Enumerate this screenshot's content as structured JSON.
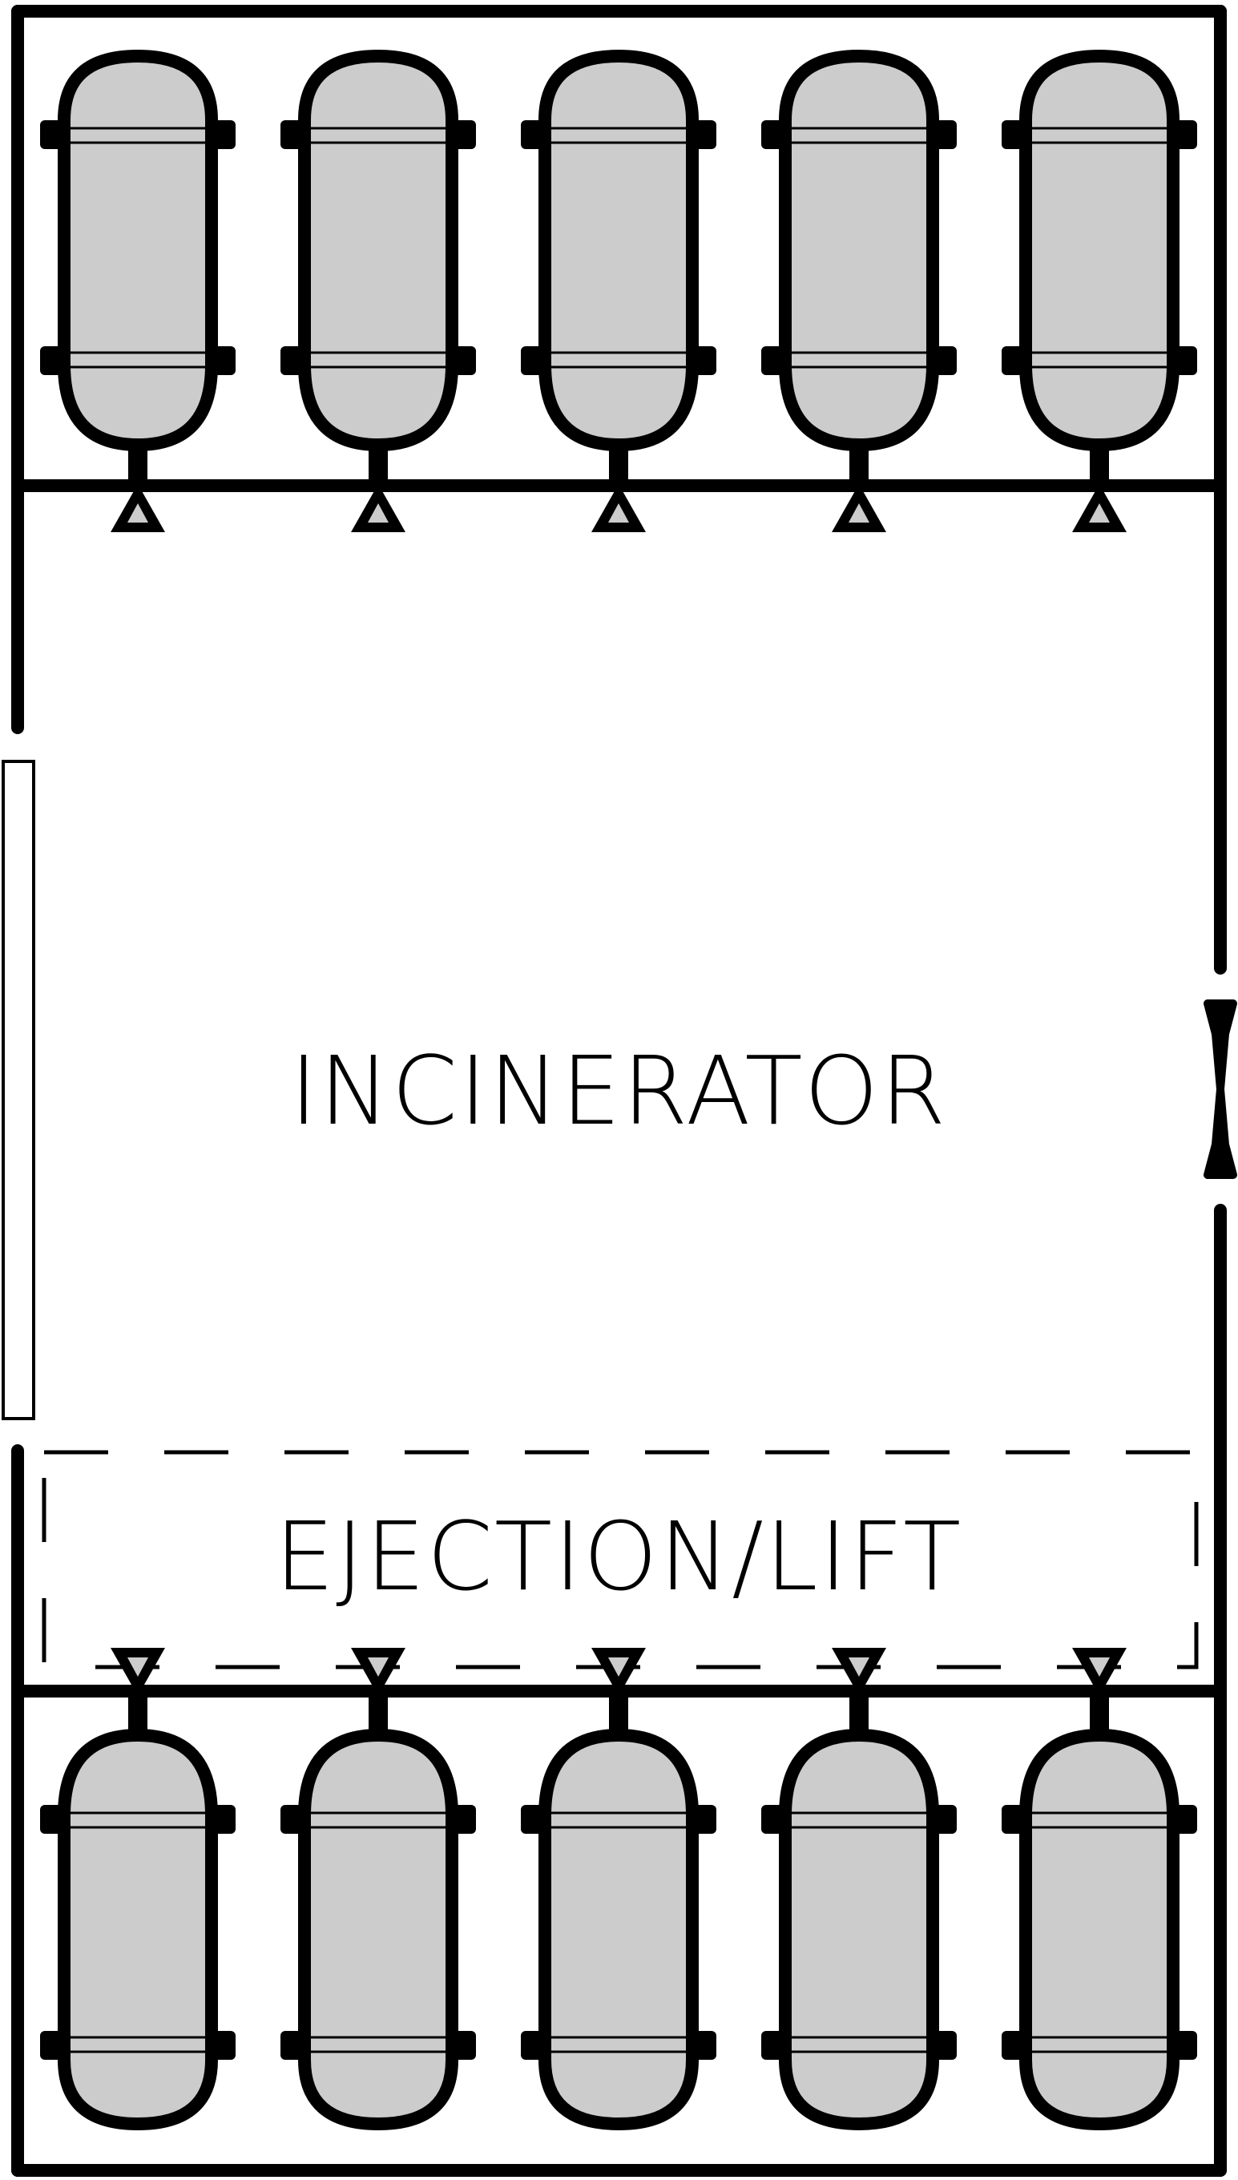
{
  "labels": {
    "incinerator": "INCINERATOR",
    "ejection_lift": "EJECTION/LIFT"
  },
  "tank_rows": [
    {
      "position": "top",
      "count": 5,
      "valve_direction": "down"
    },
    {
      "position": "bottom",
      "count": 5,
      "valve_direction": "up"
    }
  ],
  "colors": {
    "wall": "#000000",
    "tank_fill": "#cccccc",
    "background": "#ffffff"
  },
  "icons": {
    "tank": "gas-tank-icon",
    "valve": "valve-icon",
    "side_door": "bowtie-door-icon"
  }
}
